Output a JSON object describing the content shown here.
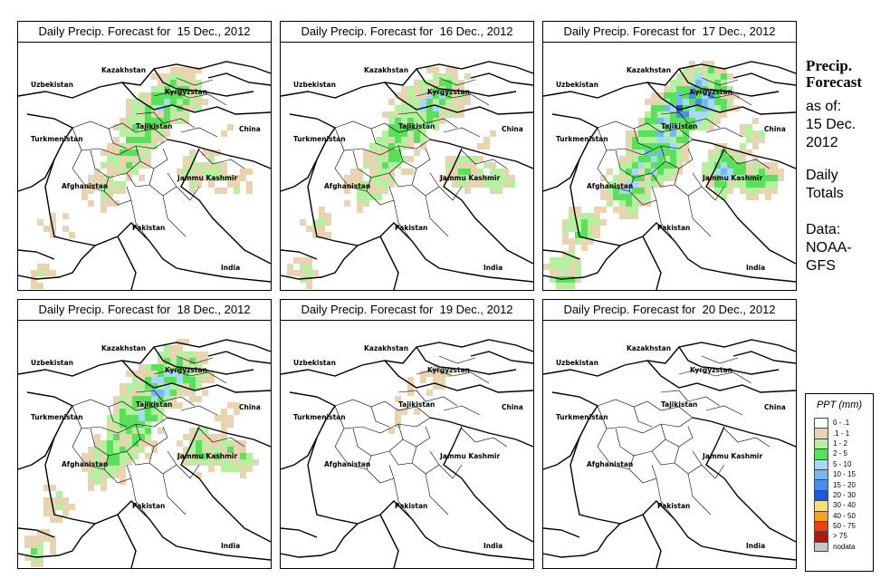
{
  "panels": [
    {
      "title": "Daily Precip. Forecast for  15 Dec., 2012",
      "intensity": 0.55,
      "seed": 11
    },
    {
      "title": "Daily Precip. Forecast for  16 Dec., 2012",
      "intensity": 0.6,
      "seed": 23
    },
    {
      "title": "Daily Precip. Forecast for  17 Dec., 2012",
      "intensity": 1.0,
      "seed": 37
    },
    {
      "title": "Daily Precip. Forecast for  18 Dec., 2012",
      "intensity": 0.7,
      "seed": 41
    },
    {
      "title": "Daily Precip. Forecast for  19 Dec., 2012",
      "intensity": 0.2,
      "seed": 53
    },
    {
      "title": "Daily Precip. Forecast for  20 Dec., 2012",
      "intensity": 0.1,
      "seed": 67
    }
  ],
  "map_labels": {
    "kazakhstan": "Kazakhstan",
    "uzbekistan": "Uzbekistan",
    "kyrgyzstan": "Kyrgyzstan",
    "tajikistan": "Tajikistan",
    "turkmenistan": "Turkmenistan",
    "china": "China",
    "afghanistan": "Afghanistan",
    "jammu_kashmir": "Jammu Kashmir",
    "pakistan": "Pakistan",
    "india": "India"
  },
  "side": {
    "title_line1": "Precip.",
    "title_line2": "Forecast",
    "asof_line1": "as of:",
    "asof_line2": "15 Dec.",
    "asof_line3": "2012",
    "totals_line1": "Daily",
    "totals_line2": "Totals",
    "source_line1": "Data:",
    "source_line2": "NOAA-",
    "source_line3": "GFS"
  },
  "legend": {
    "title": "PPT (mm)",
    "items": [
      {
        "label": "0 - .1",
        "color": "#ffffff"
      },
      {
        "label": ".1 - 1",
        "color": "#e8d4b0"
      },
      {
        "label": "1 - 2",
        "color": "#b4f0a0"
      },
      {
        "label": "2 - 5",
        "color": "#5ae05a"
      },
      {
        "label": "5 - 10",
        "color": "#a8d8f8"
      },
      {
        "label": "10 - 15",
        "color": "#78b8f0"
      },
      {
        "label": "15 - 20",
        "color": "#4a8ee8"
      },
      {
        "label": "20 - 30",
        "color": "#1a5ad8"
      },
      {
        "label": "30 - 40",
        "color": "#f8e070"
      },
      {
        "label": "40 - 50",
        "color": "#f8a020"
      },
      {
        "label": "50 - 75",
        "color": "#e84010"
      },
      {
        "label": "> 75",
        "color": "#b01810"
      },
      {
        "label": "nodata",
        "color": "#c8c8c8"
      }
    ]
  }
}
